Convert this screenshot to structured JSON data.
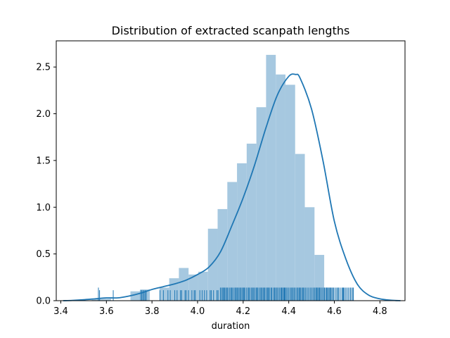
{
  "chart_data": {
    "type": "bar",
    "title": "Distribution of extracted scanpath lengths",
    "xlabel": "duration",
    "ylabel": "",
    "xlim": [
      3.38,
      4.91
    ],
    "ylim": [
      0,
      2.78
    ],
    "x_ticks": [
      3.4,
      3.6,
      3.8,
      4.0,
      4.2,
      4.4,
      4.6,
      4.8
    ],
    "x_tick_labels": [
      "3.4",
      "3.6",
      "3.8",
      "4.0",
      "4.2",
      "4.4",
      "4.6",
      "4.8"
    ],
    "y_ticks": [
      0.0,
      0.5,
      1.0,
      1.5,
      2.0,
      2.5
    ],
    "y_tick_labels": [
      "0.0",
      "0.5",
      "1.0",
      "1.5",
      "2.0",
      "2.5"
    ],
    "grid": false,
    "legend": "none",
    "colors": {
      "histogram_fill": "#a6c8e0",
      "kde_line": "#1f77b4",
      "rug": "#1f77b4",
      "axes": "#000000"
    },
    "histogram": {
      "bin_edges": [
        3.408,
        3.4505,
        3.493,
        3.5355,
        3.578,
        3.6205,
        3.663,
        3.7055,
        3.748,
        3.7905,
        3.833,
        3.8755,
        3.918,
        3.9605,
        4.003,
        4.0455,
        4.088,
        4.1305,
        4.173,
        4.2155,
        4.258,
        4.3005,
        4.343,
        4.3855,
        4.428,
        4.4705,
        4.513,
        4.5555,
        4.598,
        4.6405,
        4.683,
        4.7255
      ],
      "values": [
        0.0,
        0.0,
        0.0,
        0.02,
        0.02,
        0.0,
        0.0,
        0.1,
        0.12,
        0.0,
        0.14,
        0.24,
        0.35,
        0.28,
        0.31,
        0.77,
        0.98,
        1.27,
        1.47,
        1.68,
        2.07,
        2.63,
        2.42,
        2.31,
        1.57,
        1.0,
        0.49,
        0.14,
        0.0,
        0.0,
        0.0
      ]
    },
    "kde": {
      "x": [
        3.41,
        3.45,
        3.5,
        3.55,
        3.6,
        3.65,
        3.7,
        3.75,
        3.8,
        3.85,
        3.9,
        3.95,
        4.0,
        4.05,
        4.1,
        4.15,
        4.2,
        4.25,
        4.3,
        4.35,
        4.4,
        4.43,
        4.45,
        4.5,
        4.55,
        4.6,
        4.65,
        4.7,
        4.75,
        4.8,
        4.85,
        4.89
      ],
      "y": [
        0.0,
        0.003,
        0.01,
        0.02,
        0.03,
        0.03,
        0.05,
        0.08,
        0.12,
        0.15,
        0.18,
        0.22,
        0.28,
        0.36,
        0.52,
        0.8,
        1.1,
        1.45,
        1.85,
        2.2,
        2.4,
        2.42,
        2.38,
        2.05,
        1.5,
        0.85,
        0.45,
        0.18,
        0.06,
        0.02,
        0.005,
        0.0
      ]
    },
    "rug": {
      "height": 0.14,
      "tall_mark": {
        "x": 3.565,
        "height": 0.14
      },
      "sparse_marks": [
        3.57,
        3.63,
        3.75,
        3.755,
        3.76,
        3.765,
        3.77,
        3.775,
        3.835,
        3.85,
        3.87,
        3.88,
        3.9,
        3.91,
        3.925,
        3.93,
        3.945,
        3.95,
        3.96,
        3.975,
        3.985,
        3.99,
        4.01,
        4.02,
        4.03,
        4.04,
        4.055,
        4.06,
        4.07,
        4.085,
        4.09
      ],
      "dense_band": [
        4.1,
        4.685
      ]
    }
  }
}
